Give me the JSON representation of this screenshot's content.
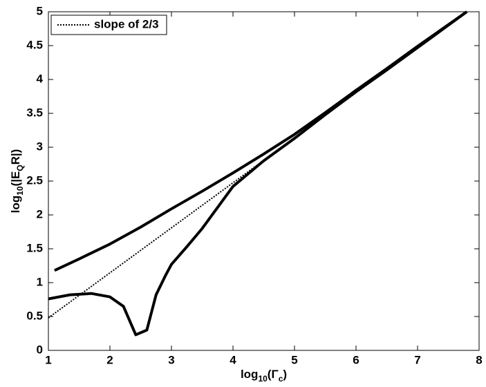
{
  "chart_data": {
    "type": "line",
    "xlabel": [
      "log",
      "10",
      "(Γ",
      "c",
      ")"
    ],
    "ylabel": [
      "log",
      "10",
      "(|E",
      "Q",
      "R|)"
    ],
    "xlim": [
      1,
      8
    ],
    "ylim": [
      0,
      5
    ],
    "xticks": [
      1,
      2,
      3,
      4,
      5,
      6,
      7,
      8
    ],
    "yticks": [
      0,
      0.5,
      1,
      1.5,
      2,
      2.5,
      3,
      3.5,
      4,
      4.5,
      5
    ],
    "grid": false,
    "legend": "upper left",
    "series": [
      {
        "name": "slope of 2/3",
        "color": "#000000",
        "style": "dotted",
        "x": [
          1,
          7.8
        ],
        "values": [
          0.48,
          5
        ]
      },
      {
        "color": "#000000",
        "style": "solid",
        "x": [
          1.1,
          1.5,
          2,
          2.5,
          3,
          3.5,
          4,
          4.5,
          5,
          5.5,
          6,
          6.5,
          7,
          7.8
        ],
        "values": [
          1.18,
          1.35,
          1.57,
          1.82,
          2.09,
          2.35,
          2.62,
          2.9,
          3.19,
          3.51,
          3.84,
          4.16,
          4.49,
          5
        ]
      },
      {
        "color": "#000000",
        "style": "solid",
        "x": [
          1,
          1.35,
          1.7,
          2,
          2.22,
          2.42,
          2.6,
          2.75,
          2.9,
          3,
          3.25,
          3.5,
          4,
          4.5,
          5,
          5.5,
          6,
          6.5,
          7,
          7.8
        ],
        "values": [
          0.76,
          0.82,
          0.84,
          0.79,
          0.65,
          0.23,
          0.3,
          0.82,
          1.1,
          1.27,
          1.53,
          1.8,
          2.42,
          2.8,
          3.13,
          3.48,
          3.82,
          4.14,
          4.47,
          5
        ]
      }
    ]
  }
}
